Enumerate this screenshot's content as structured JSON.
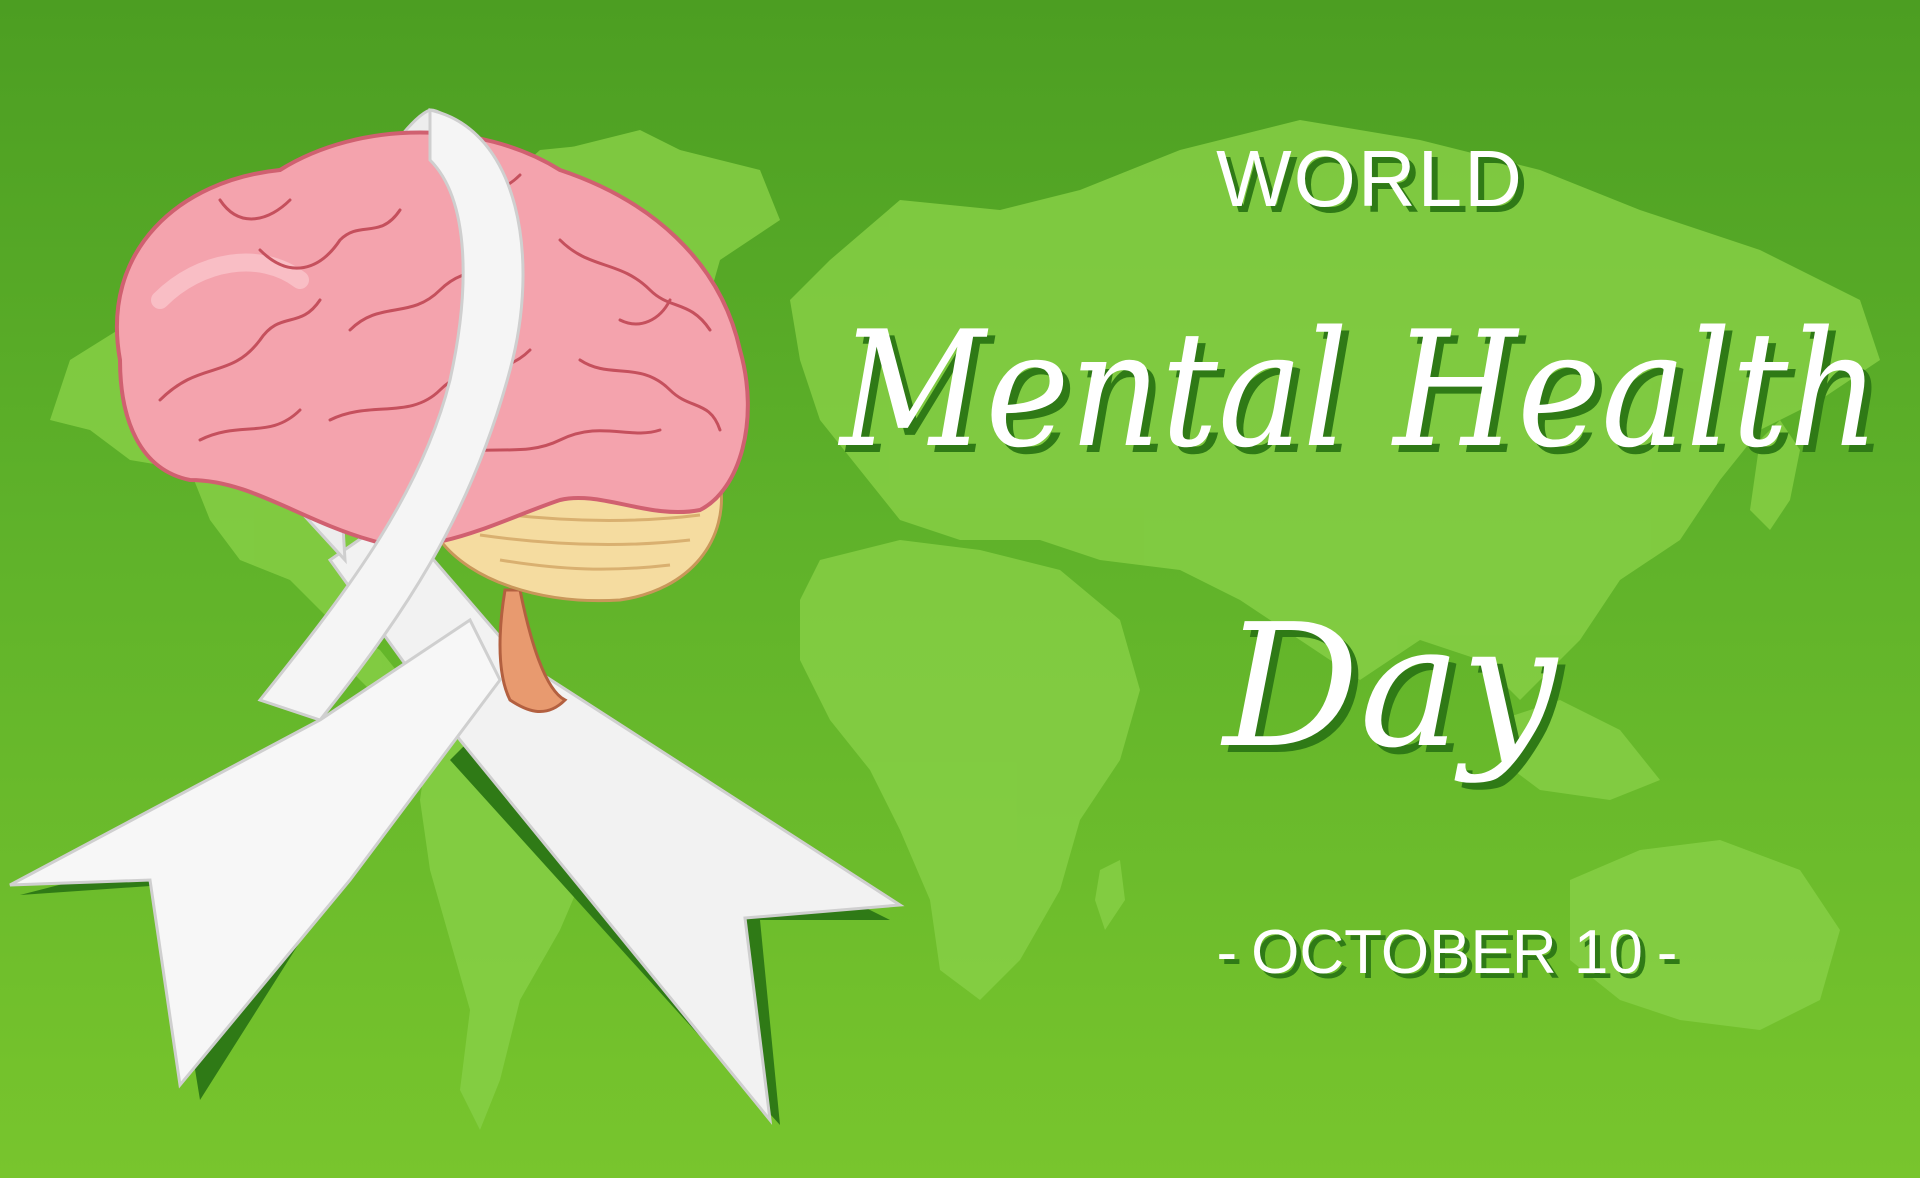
{
  "banner": {
    "line1": "WORLD",
    "line2": "Mental Health",
    "line3": "Day",
    "date_dash_left": "-",
    "date": "OCTOBER 10",
    "date_dash_right": "-"
  },
  "colors": {
    "background_top": "#4c9e22",
    "background_bottom": "#78c52d",
    "world_map": "#86cf45",
    "text": "#ffffff",
    "text_shadow": "#2f7a16",
    "ribbon": "#f2f2f2",
    "brain": "#f4a3ad"
  },
  "icons": {
    "ribbon": "awareness-ribbon-icon",
    "brain": "brain-icon",
    "map": "world-map"
  }
}
